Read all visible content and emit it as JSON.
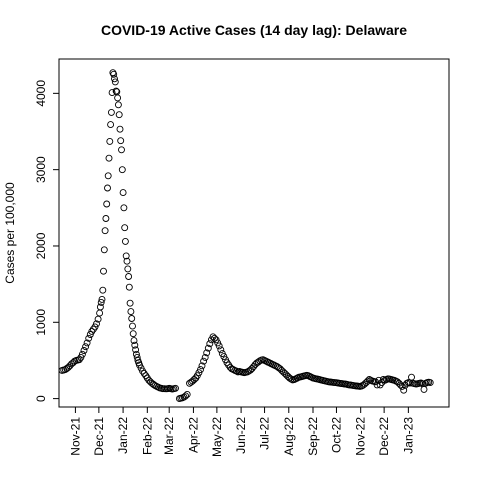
{
  "chart_data": {
    "type": "scatter",
    "title": "COVID-19 Active Cases (14 day lag): Delaware",
    "xlabel": "",
    "ylabel": "Cases per 100,000",
    "x_axis": {
      "type": "date",
      "range": [
        "2021-10-11",
        "2023-02-22"
      ],
      "ticks": [
        {
          "date": "2021-11-01",
          "label": "Nov-21"
        },
        {
          "date": "2021-12-01",
          "label": "Dec-21"
        },
        {
          "date": "2022-01-01",
          "label": "Jan-22"
        },
        {
          "date": "2022-02-01",
          "label": "Feb-22"
        },
        {
          "date": "2022-03-01",
          "label": "Mar-22"
        },
        {
          "date": "2022-04-01",
          "label": "Apr-22"
        },
        {
          "date": "2022-05-01",
          "label": "May-22"
        },
        {
          "date": "2022-06-01",
          "label": "Jun-22"
        },
        {
          "date": "2022-07-01",
          "label": "Jul-22"
        },
        {
          "date": "2022-08-01",
          "label": "Aug-22"
        },
        {
          "date": "2022-09-01",
          "label": "Sep-22"
        },
        {
          "date": "2022-10-01",
          "label": "Oct-22"
        },
        {
          "date": "2022-11-01",
          "label": "Nov-22"
        },
        {
          "date": "2022-12-01",
          "label": "Dec-22"
        },
        {
          "date": "2023-01-01",
          "label": "Jan-23"
        }
      ]
    },
    "y_axis": {
      "range": [
        -110,
        4450
      ],
      "ticks": [
        0,
        1000,
        2000,
        3000,
        4000
      ]
    },
    "grid": false,
    "legend": "none",
    "marker": "open-circle",
    "colors": {
      "points": "#000000",
      "background": "#ffffff"
    },
    "series": [
      {
        "points": [
          [
            "2021-10-15",
            370
          ],
          [
            "2021-10-17",
            375
          ],
          [
            "2021-10-19",
            380
          ],
          [
            "2021-10-21",
            395
          ],
          [
            "2021-10-23",
            410
          ],
          [
            "2021-10-25",
            430
          ],
          [
            "2021-10-27",
            455
          ],
          [
            "2021-10-29",
            470
          ],
          [
            "2021-10-31",
            490
          ],
          [
            "2021-11-02",
            500
          ],
          [
            "2021-11-04",
            505
          ],
          [
            "2021-11-06",
            510
          ],
          [
            "2021-11-08",
            540
          ],
          [
            "2021-11-10",
            580
          ],
          [
            "2021-11-12",
            630
          ],
          [
            "2021-11-14",
            680
          ],
          [
            "2021-11-16",
            730
          ],
          [
            "2021-11-18",
            790
          ],
          [
            "2021-11-20",
            840
          ],
          [
            "2021-11-22",
            880
          ],
          [
            "2021-11-24",
            910
          ],
          [
            "2021-11-26",
            940
          ],
          [
            "2021-11-28",
            980
          ],
          [
            "2021-11-30",
            1040
          ],
          [
            "2021-12-02",
            1120
          ],
          [
            "2021-12-03",
            1200
          ],
          [
            "2021-12-04",
            1260
          ],
          [
            "2021-12-05",
            1300
          ],
          [
            "2021-12-06",
            1420
          ],
          [
            "2021-12-07",
            1670
          ],
          [
            "2021-12-08",
            1950
          ],
          [
            "2021-12-09",
            2200
          ],
          [
            "2021-12-10",
            2360
          ],
          [
            "2021-12-11",
            2550
          ],
          [
            "2021-12-12",
            2760
          ],
          [
            "2021-12-13",
            2920
          ],
          [
            "2021-12-14",
            3150
          ],
          [
            "2021-12-15",
            3370
          ],
          [
            "2021-12-16",
            3590
          ],
          [
            "2021-12-17",
            3750
          ],
          [
            "2021-12-18",
            4010
          ],
          [
            "2021-12-19",
            4270
          ],
          [
            "2021-12-20",
            4250
          ],
          [
            "2021-12-21",
            4190
          ],
          [
            "2021-12-22",
            4150
          ],
          [
            "2021-12-23",
            4030
          ],
          [
            "2021-12-24",
            4020
          ],
          [
            "2021-12-25",
            3940
          ],
          [
            "2021-12-26",
            3850
          ],
          [
            "2021-12-27",
            3720
          ],
          [
            "2021-12-28",
            3530
          ],
          [
            "2021-12-29",
            3380
          ],
          [
            "2021-12-30",
            3260
          ],
          [
            "2021-12-31",
            3000
          ],
          [
            "2022-01-01",
            2700
          ],
          [
            "2022-01-02",
            2500
          ],
          [
            "2022-01-03",
            2240
          ],
          [
            "2022-01-04",
            2060
          ],
          [
            "2022-01-05",
            1870
          ],
          [
            "2022-01-06",
            1800
          ],
          [
            "2022-01-07",
            1700
          ],
          [
            "2022-01-08",
            1600
          ],
          [
            "2022-01-09",
            1460
          ],
          [
            "2022-01-10",
            1250
          ],
          [
            "2022-01-11",
            1140
          ],
          [
            "2022-01-12",
            1050
          ],
          [
            "2022-01-13",
            950
          ],
          [
            "2022-01-14",
            850
          ],
          [
            "2022-01-15",
            760
          ],
          [
            "2022-01-16",
            700
          ],
          [
            "2022-01-17",
            640
          ],
          [
            "2022-01-18",
            580
          ],
          [
            "2022-01-19",
            540
          ],
          [
            "2022-01-20",
            500
          ],
          [
            "2022-01-21",
            470
          ],
          [
            "2022-01-22",
            440
          ],
          [
            "2022-01-24",
            400
          ],
          [
            "2022-01-26",
            360
          ],
          [
            "2022-01-28",
            330
          ],
          [
            "2022-01-30",
            300
          ],
          [
            "2022-02-01",
            270
          ],
          [
            "2022-02-03",
            240
          ],
          [
            "2022-02-05",
            220
          ],
          [
            "2022-02-07",
            200
          ],
          [
            "2022-02-09",
            185
          ],
          [
            "2022-02-11",
            170
          ],
          [
            "2022-02-13",
            160
          ],
          [
            "2022-02-15",
            150
          ],
          [
            "2022-02-17",
            140
          ],
          [
            "2022-02-19",
            135
          ],
          [
            "2022-02-21",
            130
          ],
          [
            "2022-02-23",
            130
          ],
          [
            "2022-02-25",
            128
          ],
          [
            "2022-02-27",
            130
          ],
          [
            "2022-03-01",
            135
          ],
          [
            "2022-03-03",
            130
          ],
          [
            "2022-03-05",
            125
          ],
          [
            "2022-03-07",
            130
          ],
          [
            "2022-03-09",
            135
          ],
          [
            "2022-03-14",
            0
          ],
          [
            "2022-03-16",
            5
          ],
          [
            "2022-03-18",
            10
          ],
          [
            "2022-03-20",
            20
          ],
          [
            "2022-03-22",
            35
          ],
          [
            "2022-03-24",
            55
          ],
          [
            "2022-03-27",
            200
          ],
          [
            "2022-03-29",
            215
          ],
          [
            "2022-03-31",
            230
          ],
          [
            "2022-04-02",
            250
          ],
          [
            "2022-04-04",
            270
          ],
          [
            "2022-04-06",
            300
          ],
          [
            "2022-04-08",
            340
          ],
          [
            "2022-04-10",
            380
          ],
          [
            "2022-04-12",
            430
          ],
          [
            "2022-04-14",
            490
          ],
          [
            "2022-04-16",
            540
          ],
          [
            "2022-04-18",
            600
          ],
          [
            "2022-04-20",
            660
          ],
          [
            "2022-04-22",
            720
          ],
          [
            "2022-04-24",
            770
          ],
          [
            "2022-04-26",
            810
          ],
          [
            "2022-04-28",
            790
          ],
          [
            "2022-04-30",
            770
          ],
          [
            "2022-05-02",
            730
          ],
          [
            "2022-05-04",
            690
          ],
          [
            "2022-05-06",
            640
          ],
          [
            "2022-05-08",
            590
          ],
          [
            "2022-05-10",
            550
          ],
          [
            "2022-05-12",
            510
          ],
          [
            "2022-05-14",
            470
          ],
          [
            "2022-05-16",
            440
          ],
          [
            "2022-05-18",
            410
          ],
          [
            "2022-05-20",
            390
          ],
          [
            "2022-05-22",
            380
          ],
          [
            "2022-05-24",
            370
          ],
          [
            "2022-05-26",
            360
          ],
          [
            "2022-05-28",
            350
          ],
          [
            "2022-05-30",
            355
          ],
          [
            "2022-06-01",
            350
          ],
          [
            "2022-06-03",
            345
          ],
          [
            "2022-06-05",
            340
          ],
          [
            "2022-06-07",
            345
          ],
          [
            "2022-06-09",
            350
          ],
          [
            "2022-06-11",
            360
          ],
          [
            "2022-06-13",
            375
          ],
          [
            "2022-06-15",
            395
          ],
          [
            "2022-06-17",
            420
          ],
          [
            "2022-06-19",
            445
          ],
          [
            "2022-06-21",
            465
          ],
          [
            "2022-06-23",
            480
          ],
          [
            "2022-06-25",
            495
          ],
          [
            "2022-06-27",
            505
          ],
          [
            "2022-06-29",
            510
          ],
          [
            "2022-07-01",
            500
          ],
          [
            "2022-07-03",
            490
          ],
          [
            "2022-07-05",
            480
          ],
          [
            "2022-07-07",
            470
          ],
          [
            "2022-07-09",
            460
          ],
          [
            "2022-07-11",
            450
          ],
          [
            "2022-07-13",
            440
          ],
          [
            "2022-07-15",
            430
          ],
          [
            "2022-07-17",
            420
          ],
          [
            "2022-07-19",
            405
          ],
          [
            "2022-07-21",
            390
          ],
          [
            "2022-07-23",
            370
          ],
          [
            "2022-07-25",
            350
          ],
          [
            "2022-07-27",
            330
          ],
          [
            "2022-07-29",
            310
          ],
          [
            "2022-07-31",
            290
          ],
          [
            "2022-08-02",
            270
          ],
          [
            "2022-08-04",
            255
          ],
          [
            "2022-08-06",
            245
          ],
          [
            "2022-08-08",
            250
          ],
          [
            "2022-08-10",
            260
          ],
          [
            "2022-08-12",
            270
          ],
          [
            "2022-08-14",
            280
          ],
          [
            "2022-08-16",
            285
          ],
          [
            "2022-08-18",
            290
          ],
          [
            "2022-08-20",
            295
          ],
          [
            "2022-08-22",
            300
          ],
          [
            "2022-08-24",
            305
          ],
          [
            "2022-08-26",
            300
          ],
          [
            "2022-08-28",
            290
          ],
          [
            "2022-08-30",
            280
          ],
          [
            "2022-09-01",
            270
          ],
          [
            "2022-09-03",
            265
          ],
          [
            "2022-09-05",
            260
          ],
          [
            "2022-09-07",
            255
          ],
          [
            "2022-09-09",
            250
          ],
          [
            "2022-09-11",
            245
          ],
          [
            "2022-09-13",
            240
          ],
          [
            "2022-09-15",
            235
          ],
          [
            "2022-09-17",
            230
          ],
          [
            "2022-09-19",
            225
          ],
          [
            "2022-09-21",
            220
          ],
          [
            "2022-09-23",
            218
          ],
          [
            "2022-09-25",
            215
          ],
          [
            "2022-09-27",
            212
          ],
          [
            "2022-09-29",
            210
          ],
          [
            "2022-10-01",
            208
          ],
          [
            "2022-10-03",
            205
          ],
          [
            "2022-10-05",
            200
          ],
          [
            "2022-10-07",
            198
          ],
          [
            "2022-10-09",
            195
          ],
          [
            "2022-10-11",
            192
          ],
          [
            "2022-10-13",
            190
          ],
          [
            "2022-10-15",
            185
          ],
          [
            "2022-10-17",
            180
          ],
          [
            "2022-10-19",
            178
          ],
          [
            "2022-10-21",
            175
          ],
          [
            "2022-10-23",
            170
          ],
          [
            "2022-10-25",
            168
          ],
          [
            "2022-10-27",
            165
          ],
          [
            "2022-10-29",
            162
          ],
          [
            "2022-10-31",
            160
          ],
          [
            "2022-11-02",
            165
          ],
          [
            "2022-11-04",
            175
          ],
          [
            "2022-11-06",
            190
          ],
          [
            "2022-11-08",
            210
          ],
          [
            "2022-11-10",
            230
          ],
          [
            "2022-11-12",
            250
          ],
          [
            "2022-11-14",
            240
          ],
          [
            "2022-11-16",
            230
          ],
          [
            "2022-11-18",
            225
          ],
          [
            "2022-11-20",
            220
          ],
          [
            "2022-11-22",
            180
          ],
          [
            "2022-11-24",
            240
          ],
          [
            "2022-11-26",
            180
          ],
          [
            "2022-11-28",
            210
          ],
          [
            "2022-11-30",
            250
          ],
          [
            "2022-12-02",
            240
          ],
          [
            "2022-12-04",
            250
          ],
          [
            "2022-12-06",
            260
          ],
          [
            "2022-12-08",
            255
          ],
          [
            "2022-12-10",
            250
          ],
          [
            "2022-12-12",
            245
          ],
          [
            "2022-12-14",
            240
          ],
          [
            "2022-12-16",
            230
          ],
          [
            "2022-12-18",
            220
          ],
          [
            "2022-12-20",
            200
          ],
          [
            "2022-12-22",
            180
          ],
          [
            "2022-12-24",
            160
          ],
          [
            "2022-12-26",
            110
          ],
          [
            "2022-12-28",
            175
          ],
          [
            "2022-12-30",
            200
          ],
          [
            "2023-01-01",
            210
          ],
          [
            "2023-01-03",
            205
          ],
          [
            "2023-01-05",
            280
          ],
          [
            "2023-01-07",
            200
          ],
          [
            "2023-01-09",
            195
          ],
          [
            "2023-01-11",
            190
          ],
          [
            "2023-01-13",
            195
          ],
          [
            "2023-01-15",
            200
          ],
          [
            "2023-01-17",
            205
          ],
          [
            "2023-01-19",
            195
          ],
          [
            "2023-01-21",
            120
          ],
          [
            "2023-01-23",
            200
          ],
          [
            "2023-01-25",
            210
          ],
          [
            "2023-01-27",
            215
          ],
          [
            "2023-01-29",
            210
          ]
        ]
      }
    ]
  }
}
